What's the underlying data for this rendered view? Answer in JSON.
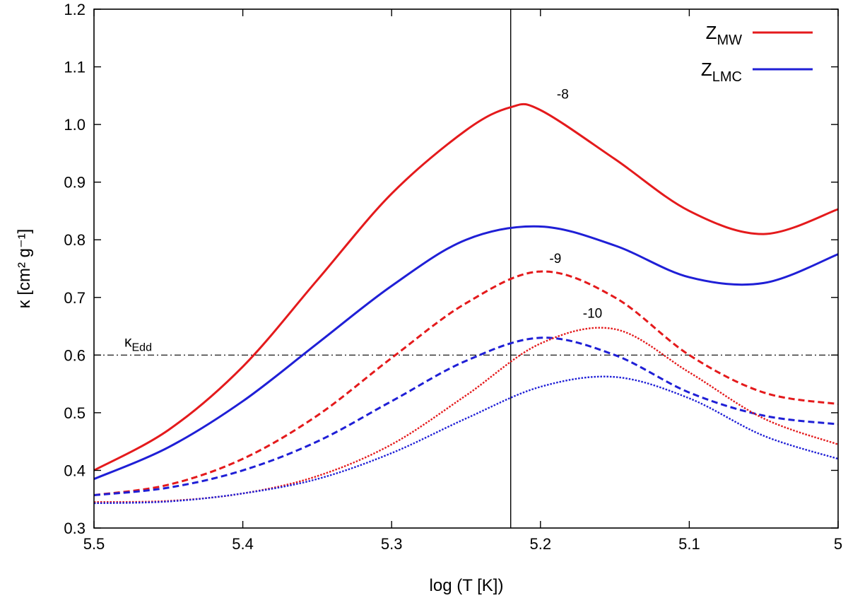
{
  "chart_data": {
    "type": "line",
    "xlabel": "log (T [K])",
    "ylabel": "κ [cm² g⁻¹]",
    "xlim": [
      5.5,
      5.0
    ],
    "ylim": [
      0.3,
      1.2
    ],
    "x_axis_reversed": true,
    "x_ticks": [
      "5.5",
      "5.4",
      "5.3",
      "5.2",
      "5.1",
      "5"
    ],
    "y_ticks": [
      "0.3",
      "0.4",
      "0.5",
      "0.6",
      "0.7",
      "0.8",
      "0.9",
      "1.0",
      "1.1",
      "1.2"
    ],
    "grid": false,
    "legend_position": "top-right",
    "legend": [
      {
        "label": "Z",
        "sub": "MW",
        "color": "#e41a1c"
      },
      {
        "label": "Z",
        "sub": "LMC",
        "color": "#1f1fd6"
      }
    ],
    "reference_lines": {
      "kappa_edd": {
        "y": 0.6,
        "label": "κ",
        "sub": "Edd",
        "style": "dash-dot"
      },
      "vertical_x": 5.22
    },
    "annotations": [
      {
        "text": "-8",
        "x": 5.185,
        "y": 1.045
      },
      {
        "text": "-9",
        "x": 5.19,
        "y": 0.76
      },
      {
        "text": "-10",
        "x": 5.165,
        "y": 0.665
      }
    ],
    "series": [
      {
        "metallicity": "MW",
        "mdot": "-8",
        "color": "#e41a1c",
        "dash": "solid",
        "x": [
          5.5,
          5.45,
          5.4,
          5.35,
          5.3,
          5.25,
          5.22,
          5.2,
          5.15,
          5.1,
          5.05,
          5.0
        ],
        "y": [
          0.4,
          0.47,
          0.58,
          0.73,
          0.88,
          0.99,
          1.03,
          1.025,
          0.94,
          0.85,
          0.81,
          0.853
        ]
      },
      {
        "metallicity": "LMC",
        "mdot": "-8",
        "color": "#1f1fd6",
        "dash": "solid",
        "x": [
          5.5,
          5.45,
          5.4,
          5.35,
          5.3,
          5.25,
          5.2,
          5.15,
          5.1,
          5.05,
          5.0
        ],
        "y": [
          0.385,
          0.44,
          0.52,
          0.62,
          0.72,
          0.8,
          0.823,
          0.79,
          0.735,
          0.725,
          0.775
        ]
      },
      {
        "metallicity": "MW",
        "mdot": "-9",
        "color": "#e41a1c",
        "dash": "dashed",
        "x": [
          5.5,
          5.45,
          5.4,
          5.35,
          5.3,
          5.25,
          5.2,
          5.15,
          5.1,
          5.05,
          5.0
        ],
        "y": [
          0.357,
          0.375,
          0.42,
          0.495,
          0.595,
          0.69,
          0.745,
          0.7,
          0.6,
          0.535,
          0.515
        ]
      },
      {
        "metallicity": "LMC",
        "mdot": "-9",
        "color": "#1f1fd6",
        "dash": "dashed",
        "x": [
          5.5,
          5.45,
          5.4,
          5.35,
          5.3,
          5.25,
          5.2,
          5.15,
          5.1,
          5.05,
          5.0
        ],
        "y": [
          0.357,
          0.37,
          0.4,
          0.45,
          0.52,
          0.59,
          0.63,
          0.6,
          0.535,
          0.495,
          0.48
        ]
      },
      {
        "metallicity": "MW",
        "mdot": "-10",
        "color": "#e41a1c",
        "dash": "dotted",
        "x": [
          5.5,
          5.45,
          5.4,
          5.35,
          5.3,
          5.25,
          5.2,
          5.15,
          5.1,
          5.05,
          5.0
        ],
        "y": [
          0.345,
          0.347,
          0.36,
          0.39,
          0.445,
          0.53,
          0.62,
          0.645,
          0.57,
          0.49,
          0.445
        ]
      },
      {
        "metallicity": "LMC",
        "mdot": "-10",
        "color": "#1f1fd6",
        "dash": "dotted",
        "x": [
          5.5,
          5.45,
          5.4,
          5.35,
          5.3,
          5.25,
          5.2,
          5.15,
          5.1,
          5.05,
          5.0
        ],
        "y": [
          0.343,
          0.346,
          0.36,
          0.385,
          0.43,
          0.49,
          0.545,
          0.562,
          0.525,
          0.46,
          0.42
        ]
      }
    ]
  }
}
